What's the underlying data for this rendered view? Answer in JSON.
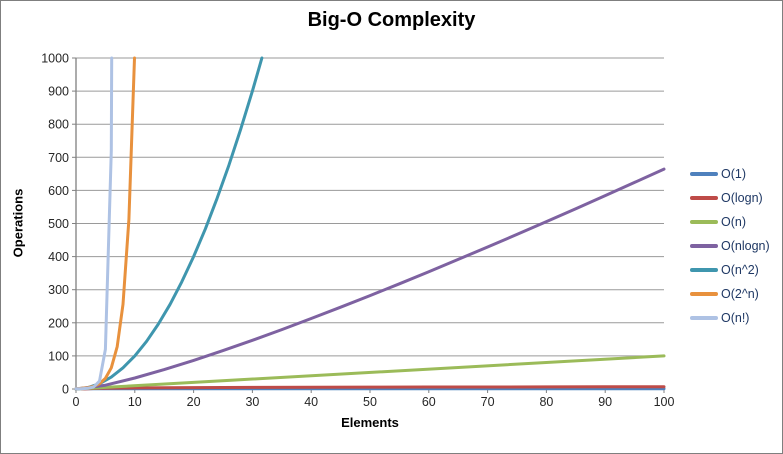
{
  "window": {
    "background": "#FFFFFF",
    "border_color": "#7F7F7F"
  },
  "chart_data": {
    "type": "line",
    "title": "Big-O Complexity",
    "xlabel": "Elements",
    "ylabel": "Operations",
    "xlim": [
      0,
      100
    ],
    "ylim": [
      0,
      1000
    ],
    "x_ticks": [
      0,
      10,
      20,
      30,
      40,
      50,
      60,
      70,
      80,
      90,
      100
    ],
    "y_ticks": [
      0,
      100,
      200,
      300,
      400,
      500,
      600,
      700,
      800,
      900,
      1000
    ],
    "grid": "horizontal-only",
    "legend_position": "right",
    "colors": {
      "axis": "#808080",
      "gridline": "#9A9A9A",
      "tick_label": "#262626",
      "legend_text": "#1F3864",
      "title": "#000000"
    },
    "series": [
      {
        "name": "O(1)",
        "color": "#4F81BD",
        "points": [
          [
            0,
            1
          ],
          [
            100,
            1
          ]
        ]
      },
      {
        "name": "O(logn)",
        "color": "#BE4B48",
        "points": [
          [
            1,
            0
          ],
          [
            2,
            1
          ],
          [
            3,
            1.6
          ],
          [
            4,
            2
          ],
          [
            5,
            2.3
          ],
          [
            6,
            2.6
          ],
          [
            8,
            3
          ],
          [
            10,
            3.3
          ],
          [
            15,
            3.9
          ],
          [
            20,
            4.3
          ],
          [
            25,
            4.6
          ],
          [
            30,
            4.9
          ],
          [
            40,
            5.3
          ],
          [
            50,
            5.6
          ],
          [
            60,
            5.9
          ],
          [
            70,
            6.1
          ],
          [
            80,
            6.3
          ],
          [
            90,
            6.5
          ],
          [
            100,
            6.6
          ]
        ]
      },
      {
        "name": "O(n)",
        "color": "#9BBB59",
        "points": [
          [
            0,
            0
          ],
          [
            100,
            100
          ]
        ]
      },
      {
        "name": "O(nlogn)",
        "color": "#7E62A1",
        "points": [
          [
            0,
            0
          ],
          [
            5,
            11.6
          ],
          [
            10,
            33.2
          ],
          [
            15,
            58.6
          ],
          [
            20,
            86.4
          ],
          [
            25,
            116.1
          ],
          [
            30,
            147.2
          ],
          [
            35,
            179.4
          ],
          [
            40,
            212.9
          ],
          [
            45,
            247.1
          ],
          [
            50,
            282.2
          ],
          [
            55,
            317.9
          ],
          [
            60,
            354.4
          ],
          [
            65,
            391.5
          ],
          [
            70,
            429.0
          ],
          [
            75,
            467.0
          ],
          [
            80,
            505.8
          ],
          [
            85,
            544.8
          ],
          [
            90,
            584.3
          ],
          [
            95,
            624.1
          ],
          [
            100,
            664.4
          ]
        ]
      },
      {
        "name": "O(n^2)",
        "color": "#3F96AE",
        "points": [
          [
            0,
            0
          ],
          [
            2,
            4
          ],
          [
            4,
            16
          ],
          [
            6,
            36
          ],
          [
            8,
            64
          ],
          [
            10,
            100
          ],
          [
            12,
            144
          ],
          [
            14,
            196
          ],
          [
            16,
            256
          ],
          [
            18,
            324
          ],
          [
            20,
            400
          ],
          [
            22,
            484
          ],
          [
            24,
            576
          ],
          [
            26,
            676
          ],
          [
            28,
            784
          ],
          [
            30,
            900
          ],
          [
            32,
            1024
          ]
        ]
      },
      {
        "name": "O(2^n)",
        "color": "#E8913D",
        "points": [
          [
            0,
            1
          ],
          [
            1,
            2
          ],
          [
            2,
            4
          ],
          [
            3,
            8
          ],
          [
            4,
            16
          ],
          [
            5,
            32
          ],
          [
            6,
            64
          ],
          [
            7,
            128
          ],
          [
            8,
            256
          ],
          [
            9,
            512
          ],
          [
            10,
            1024
          ]
        ]
      },
      {
        "name": "O(n!)",
        "color": "#AEC2E4",
        "points": [
          [
            0,
            1
          ],
          [
            1,
            1
          ],
          [
            2,
            2
          ],
          [
            3,
            6
          ],
          [
            4,
            24
          ],
          [
            5,
            120
          ],
          [
            6,
            720
          ],
          [
            7,
            5040
          ]
        ]
      }
    ]
  }
}
